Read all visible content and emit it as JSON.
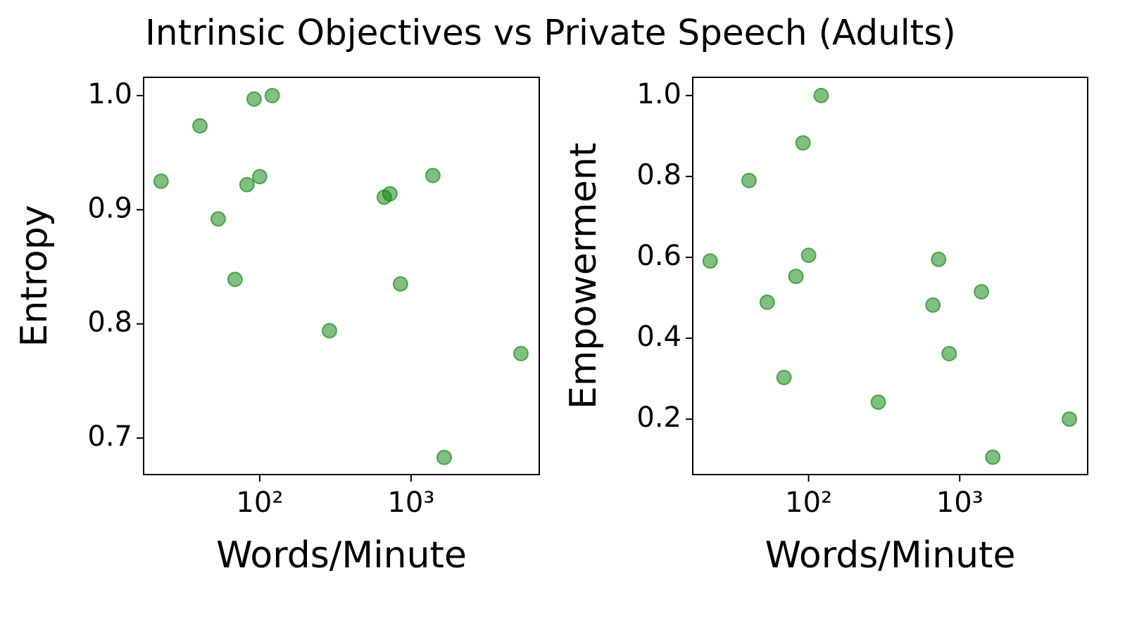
{
  "title": "Intrinsic Objectives vs Private Speech (Adults)",
  "chart_data": [
    {
      "type": "scatter",
      "xlabel": "Words/Minute",
      "ylabel": "Entropy",
      "color": "#008000",
      "xscale": "log",
      "x": [
        22.3,
        40.3,
        53.2,
        68.7,
        82.4,
        91.8,
        100,
        121,
        289,
        665,
        725,
        851,
        1393,
        1655,
        5320
      ],
      "values": [
        0.925,
        0.9735,
        0.892,
        0.839,
        0.922,
        0.997,
        0.929,
        1.0,
        0.794,
        0.911,
        0.914,
        0.835,
        0.93,
        0.683,
        0.774
      ],
      "xlim": [
        17.1,
        7030
      ],
      "xticks": [
        {
          "value": 100,
          "label": "10²"
        },
        {
          "value": 1000,
          "label": "10³"
        }
      ],
      "ylim": [
        0.668,
        1.016
      ],
      "yticks": [
        {
          "value": 0.7,
          "label": "0.7"
        },
        {
          "value": 0.8,
          "label": "0.8"
        },
        {
          "value": 0.9,
          "label": "0.9"
        },
        {
          "value": 1.0,
          "label": "1.0"
        }
      ]
    },
    {
      "type": "scatter",
      "xlabel": "Words/Minute",
      "ylabel": "Empowerment",
      "color": "#008000",
      "xscale": "log",
      "x": [
        22.3,
        40.3,
        53.2,
        68.7,
        82.4,
        91.8,
        100,
        121,
        289,
        665,
        725,
        851,
        1393,
        1655,
        5320
      ],
      "values": [
        0.591,
        0.79,
        0.489,
        0.303,
        0.553,
        0.883,
        0.605,
        1.0,
        0.242,
        0.482,
        0.595,
        0.362,
        0.515,
        0.106,
        0.2
      ],
      "xlim": [
        17.1,
        7030
      ],
      "xticks": [
        {
          "value": 100,
          "label": "10²"
        },
        {
          "value": 1000,
          "label": "10³"
        }
      ],
      "ylim": [
        0.063,
        1.045
      ],
      "yticks": [
        {
          "value": 0.2,
          "label": "0.2"
        },
        {
          "value": 0.4,
          "label": "0.4"
        },
        {
          "value": 0.6,
          "label": "0.6"
        },
        {
          "value": 0.8,
          "label": "0.8"
        },
        {
          "value": 1.0,
          "label": "1.0"
        }
      ]
    }
  ]
}
